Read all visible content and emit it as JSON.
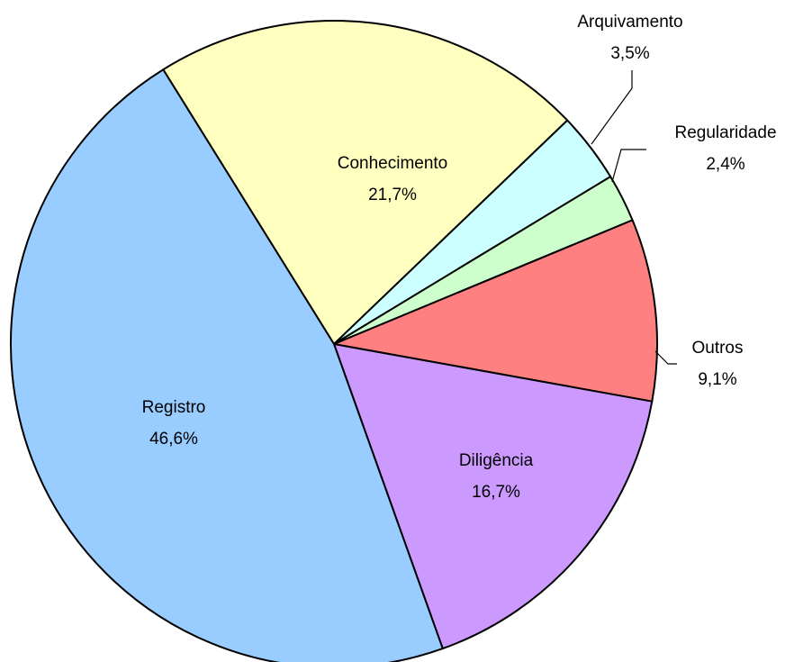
{
  "chart_data": {
    "type": "pie",
    "categories": [
      "Conhecimento",
      "Arquivamento",
      "Regularidade",
      "Outros",
      "Diligência",
      "Registro"
    ],
    "values": [
      21.7,
      3.5,
      2.4,
      9.1,
      16.7,
      46.6
    ],
    "value_labels": [
      "21,7%",
      "3,5%",
      "2,4%",
      "9,1%",
      "16,7%",
      "46,6%"
    ],
    "colors": [
      "#ffffc0",
      "#ccffff",
      "#ccffcc",
      "#ff8080",
      "#cc99ff",
      "#99ccff"
    ]
  }
}
